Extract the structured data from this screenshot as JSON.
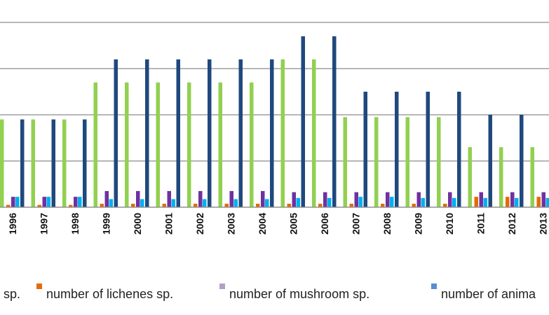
{
  "chart_data": {
    "type": "bar",
    "title": "",
    "xlabel": "",
    "ylabel": "",
    "grid": true,
    "legend_position": "bottom",
    "ylim": [
      0,
      100
    ],
    "categories": [
      "1996",
      "1997",
      "1998",
      "1999",
      "2000",
      "2001",
      "2002",
      "2003",
      "2004",
      "2005",
      "2006",
      "2007",
      "2008",
      "2009",
      "2010",
      "2011",
      "2012",
      "2013"
    ],
    "series": [
      {
        "name": "t sp.",
        "color": "#92d050",
        "values": [
          38,
          38,
          38,
          54,
          54,
          54,
          54,
          54,
          54,
          64,
          64,
          39,
          39,
          39,
          39,
          26,
          26,
          26
        ]
      },
      {
        "name": "number of lichenes sp.",
        "color": "#e36c09",
        "values": [
          1,
          1,
          1,
          1.5,
          1.5,
          1.5,
          1.5,
          1.5,
          1.5,
          1.5,
          1.5,
          1.5,
          1.5,
          1.5,
          1.5,
          4.5,
          4.5,
          4.5
        ]
      },
      {
        "name": "number of  mushroom sp.",
        "color": "#7030a0",
        "values": [
          4.5,
          4.5,
          4.5,
          7,
          7,
          7,
          7,
          7,
          7,
          6.5,
          6.5,
          6.5,
          6.5,
          6.5,
          6.5,
          6.5,
          6.5,
          6.5
        ]
      },
      {
        "name": "number of anima",
        "color": "#00b0f0",
        "values": [
          4.5,
          4.5,
          4.5,
          3.5,
          3.5,
          3.5,
          3.5,
          3.5,
          3.5,
          4,
          4,
          4.5,
          4.5,
          4,
          4,
          4,
          4,
          4
        ]
      },
      {
        "name": "",
        "color": "#1f497d",
        "values": [
          38,
          38,
          38,
          64,
          64,
          64,
          64,
          64,
          64,
          74,
          74,
          50,
          50,
          50,
          50,
          40,
          40,
          40
        ]
      }
    ],
    "legend": [
      {
        "label": "t sp.",
        "marker_color": ""
      },
      {
        "label": "number of lichenes sp.",
        "marker_color": "#e36c09"
      },
      {
        "label": "number of  mushroom sp.",
        "marker_color": "#b1a0c7"
      },
      {
        "label": "number of anima",
        "marker_color": "#558ed5"
      }
    ]
  }
}
